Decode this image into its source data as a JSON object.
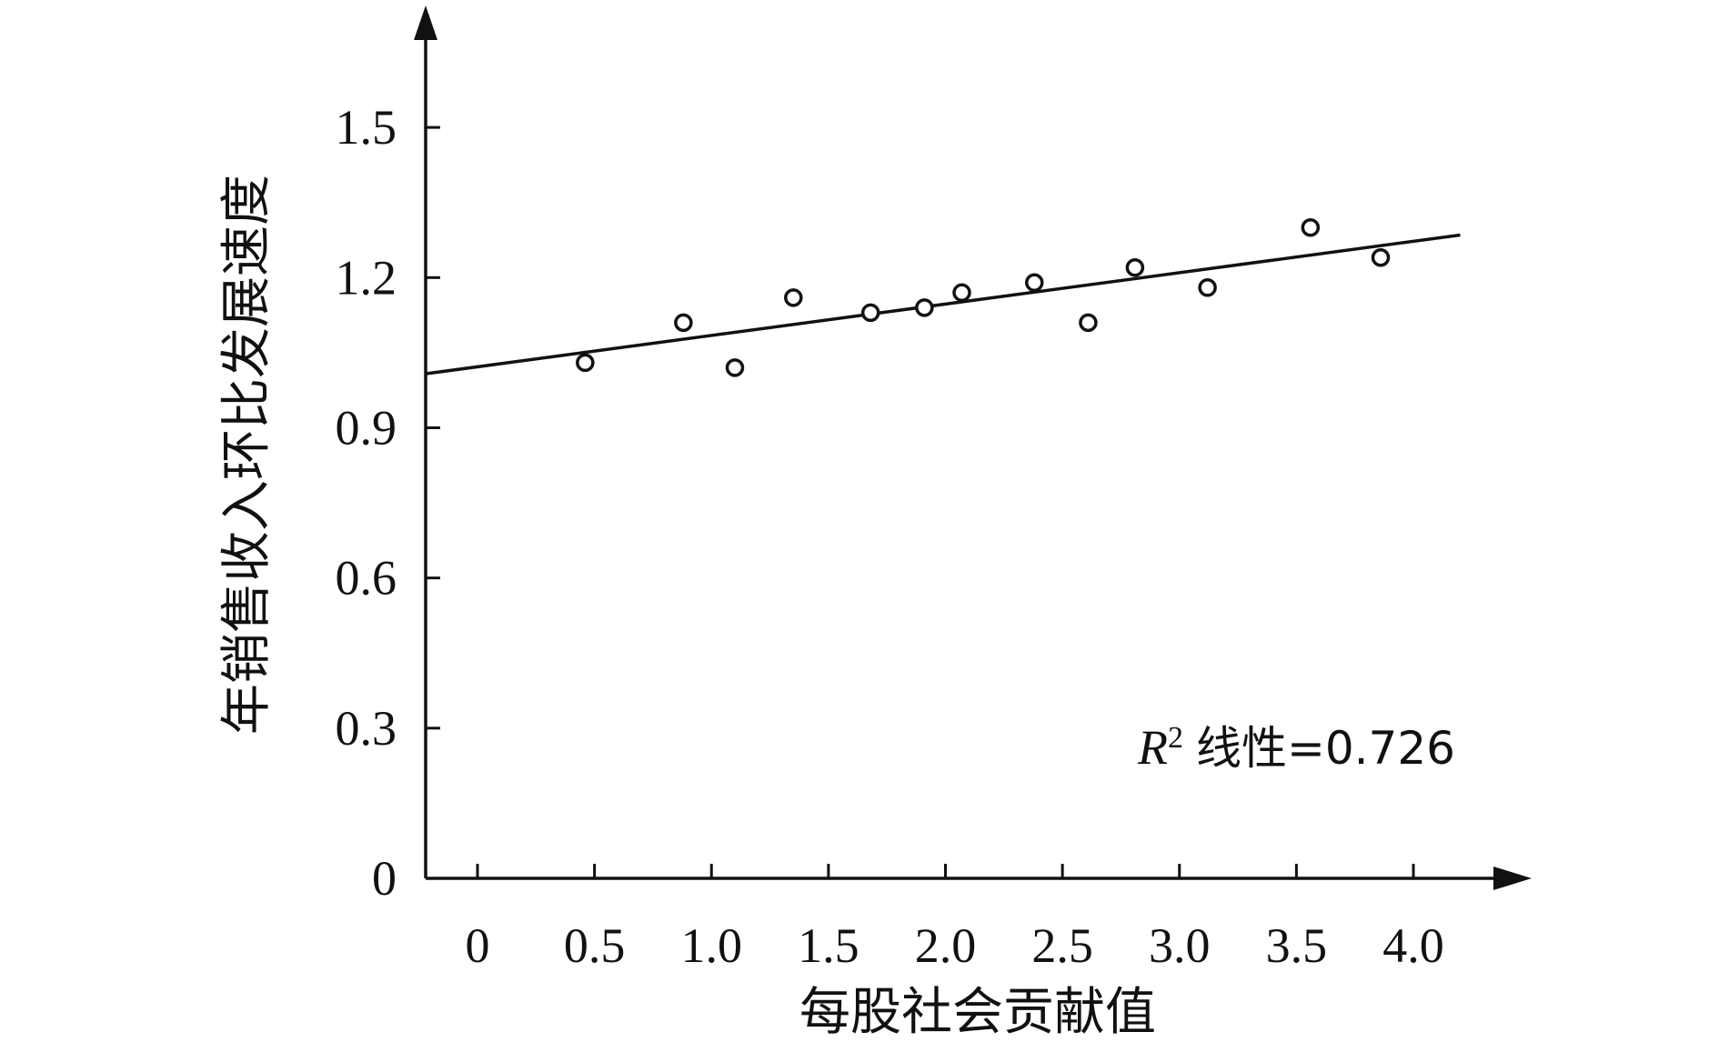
{
  "chart_data": {
    "type": "scatter",
    "title": "",
    "xlabel": "每股社会贡献值",
    "ylabel": "年销售收入环比发展速度",
    "x_ticks": [
      "0",
      "0.5",
      "1.0",
      "1.5",
      "2.0",
      "2.5",
      "3.0",
      "3.5",
      "4.0"
    ],
    "y_ticks": [
      "0",
      "0.3",
      "0.6",
      "0.9",
      "1.2",
      "1.5"
    ],
    "xlim": [
      -0.22,
      4.45
    ],
    "ylim": [
      0,
      1.7
    ],
    "grid": false,
    "points": [
      {
        "x": 0.46,
        "y": 1.03
      },
      {
        "x": 0.88,
        "y": 1.11
      },
      {
        "x": 1.1,
        "y": 1.02
      },
      {
        "x": 1.35,
        "y": 1.16
      },
      {
        "x": 1.68,
        "y": 1.13
      },
      {
        "x": 1.91,
        "y": 1.14
      },
      {
        "x": 2.07,
        "y": 1.17
      },
      {
        "x": 2.38,
        "y": 1.19
      },
      {
        "x": 2.61,
        "y": 1.11
      },
      {
        "x": 2.81,
        "y": 1.22
      },
      {
        "x": 3.12,
        "y": 1.18
      },
      {
        "x": 3.56,
        "y": 1.3
      },
      {
        "x": 3.86,
        "y": 1.24
      }
    ],
    "trendline": {
      "type": "linear",
      "x_start": -0.22,
      "x_end": 4.2,
      "y_start": 1.008,
      "y_end": 1.285
    },
    "annotation": {
      "r_label": "R",
      "r_superscript": "2",
      "text": "线性=0.726"
    }
  }
}
